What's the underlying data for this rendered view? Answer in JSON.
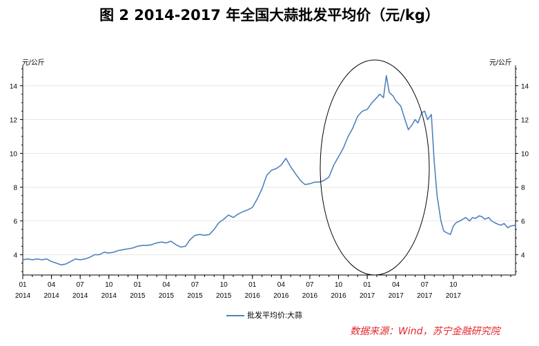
{
  "title": "图 2 2014-2017 年全国大蒜批发平均价（元/kg）",
  "source": "数据来源：Wind，苏宁金融研究院",
  "chart_data": {
    "type": "line",
    "title": "图 2 2014-2017 年全国大蒜批发平均价（元/kg）",
    "y_unit_left": "元/公斤",
    "y_unit_right": "元/公斤",
    "ylim": [
      2.8,
      15.2
    ],
    "yticks": [
      4,
      6,
      8,
      10,
      12,
      14
    ],
    "x_range_months": [
      0,
      48
    ],
    "x_ticks": [
      {
        "m": 0,
        "month": "01",
        "year": "2014"
      },
      {
        "m": 3,
        "month": "04",
        "year": "2014"
      },
      {
        "m": 6,
        "month": "07",
        "year": "2014"
      },
      {
        "m": 9,
        "month": "10",
        "year": "2014"
      },
      {
        "m": 12,
        "month": "01",
        "year": "2015"
      },
      {
        "m": 15,
        "month": "04",
        "year": "2015"
      },
      {
        "m": 18,
        "month": "07",
        "year": "2015"
      },
      {
        "m": 21,
        "month": "10",
        "year": "2015"
      },
      {
        "m": 24,
        "month": "01",
        "year": "2016"
      },
      {
        "m": 27,
        "month": "04",
        "year": "2016"
      },
      {
        "m": 30,
        "month": "07",
        "year": "2016"
      },
      {
        "m": 33,
        "month": "10",
        "year": "2016"
      },
      {
        "m": 36,
        "month": "01",
        "year": "2017"
      },
      {
        "m": 39,
        "month": "04",
        "year": "2017"
      },
      {
        "m": 42,
        "month": "07",
        "year": "2017"
      },
      {
        "m": 45,
        "month": "10",
        "year": "2017"
      }
    ],
    "series": [
      {
        "name": "批发平均价:大蒜",
        "color": "#4f81bd",
        "points": [
          [
            0,
            3.7
          ],
          [
            0.5,
            3.75
          ],
          [
            1,
            3.7
          ],
          [
            1.5,
            3.75
          ],
          [
            2,
            3.7
          ],
          [
            2.5,
            3.75
          ],
          [
            3,
            3.6
          ],
          [
            3.5,
            3.5
          ],
          [
            4,
            3.4
          ],
          [
            4.5,
            3.45
          ],
          [
            5,
            3.6
          ],
          [
            5.5,
            3.75
          ],
          [
            6,
            3.7
          ],
          [
            6.5,
            3.75
          ],
          [
            7,
            3.85
          ],
          [
            7.5,
            4.0
          ],
          [
            8,
            4.0
          ],
          [
            8.5,
            4.15
          ],
          [
            9,
            4.1
          ],
          [
            9.5,
            4.15
          ],
          [
            10,
            4.25
          ],
          [
            10.5,
            4.3
          ],
          [
            11,
            4.35
          ],
          [
            11.5,
            4.4
          ],
          [
            12,
            4.5
          ],
          [
            12.5,
            4.55
          ],
          [
            13,
            4.55
          ],
          [
            13.5,
            4.6
          ],
          [
            14,
            4.7
          ],
          [
            14.5,
            4.75
          ],
          [
            15,
            4.7
          ],
          [
            15.5,
            4.8
          ],
          [
            16,
            4.6
          ],
          [
            16.5,
            4.45
          ],
          [
            17,
            4.5
          ],
          [
            17.5,
            4.9
          ],
          [
            18,
            5.15
          ],
          [
            18.5,
            5.2
          ],
          [
            19,
            5.15
          ],
          [
            19.5,
            5.2
          ],
          [
            20,
            5.5
          ],
          [
            20.5,
            5.9
          ],
          [
            21,
            6.1
          ],
          [
            21.5,
            6.35
          ],
          [
            22,
            6.2
          ],
          [
            22.5,
            6.4
          ],
          [
            23,
            6.55
          ],
          [
            23.5,
            6.65
          ],
          [
            24,
            6.8
          ],
          [
            24.5,
            7.3
          ],
          [
            25,
            7.9
          ],
          [
            25.5,
            8.7
          ],
          [
            26,
            9.0
          ],
          [
            26.5,
            9.1
          ],
          [
            27,
            9.3
          ],
          [
            27.5,
            9.7
          ],
          [
            28,
            9.2
          ],
          [
            28.5,
            8.8
          ],
          [
            29,
            8.4
          ],
          [
            29.5,
            8.15
          ],
          [
            30,
            8.2
          ],
          [
            30.5,
            8.3
          ],
          [
            31,
            8.3
          ],
          [
            31.5,
            8.4
          ],
          [
            32,
            8.6
          ],
          [
            32.5,
            9.3
          ],
          [
            33,
            9.8
          ],
          [
            33.5,
            10.3
          ],
          [
            34,
            11.0
          ],
          [
            34.5,
            11.5
          ],
          [
            35,
            12.2
          ],
          [
            35.5,
            12.5
          ],
          [
            36,
            12.6
          ],
          [
            36.5,
            13.0
          ],
          [
            37,
            13.3
          ],
          [
            37.3,
            13.5
          ],
          [
            37.7,
            13.3
          ],
          [
            38,
            14.6
          ],
          [
            38.3,
            13.6
          ],
          [
            38.7,
            13.4
          ],
          [
            39,
            13.1
          ],
          [
            39.5,
            12.8
          ],
          [
            40,
            11.9
          ],
          [
            40.3,
            11.4
          ],
          [
            40.7,
            11.7
          ],
          [
            41,
            12.0
          ],
          [
            41.3,
            11.8
          ],
          [
            41.7,
            12.4
          ],
          [
            42,
            12.5
          ],
          [
            42.3,
            12.0
          ],
          [
            42.7,
            12.3
          ],
          [
            43,
            9.5
          ],
          [
            43.3,
            7.5
          ],
          [
            43.7,
            6.0
          ],
          [
            44,
            5.4
          ],
          [
            44.3,
            5.3
          ],
          [
            44.7,
            5.2
          ],
          [
            45,
            5.7
          ],
          [
            45.3,
            5.9
          ],
          [
            45.7,
            6.0
          ],
          [
            46,
            6.1
          ],
          [
            46.3,
            6.2
          ],
          [
            46.7,
            6.0
          ],
          [
            47,
            6.2
          ],
          [
            47.3,
            6.15
          ],
          [
            47.7,
            6.3
          ],
          [
            48,
            6.25
          ],
          [
            48.3,
            6.1
          ],
          [
            48.7,
            6.2
          ],
          [
            49,
            6.0
          ],
          [
            49.3,
            5.9
          ],
          [
            49.7,
            5.8
          ],
          [
            50,
            5.75
          ],
          [
            50.3,
            5.85
          ],
          [
            50.7,
            5.6
          ],
          [
            51,
            5.7
          ],
          [
            51.5,
            5.75
          ]
        ]
      }
    ],
    "grid": true,
    "legend": "bottom-center",
    "annotation": "ellipse highlighting mid-2016 to early-2017 surge"
  }
}
